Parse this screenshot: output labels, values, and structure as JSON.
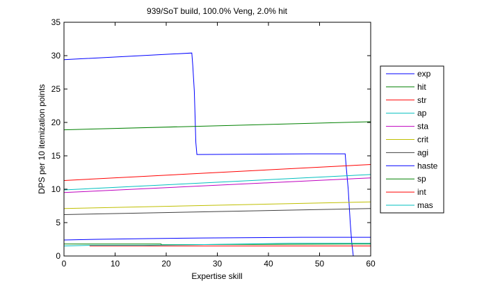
{
  "chart_data": {
    "type": "line",
    "title": "939/SoT build, 100.0% Veng, 2.0% hit",
    "xlabel": "Expertise skill",
    "ylabel": "DPS per 10 itemization points",
    "xlim": [
      0,
      60
    ],
    "ylim": [
      0,
      35
    ],
    "xticks": [
      "0",
      "10",
      "20",
      "30",
      "40",
      "50",
      "60"
    ],
    "yticks": [
      "0",
      "5",
      "10",
      "15",
      "20",
      "25",
      "30",
      "35"
    ],
    "grid": false,
    "legend_position": "outside-right",
    "series": [
      {
        "name": "exp",
        "color": "#0000ff",
        "x": [
          0,
          25,
          25.2,
          25.5,
          25.8,
          26,
          48,
          55,
          55.2,
          55.6,
          56,
          56.3,
          56.6
        ],
        "y": [
          29.4,
          30.4,
          28.5,
          24.7,
          17.0,
          15.2,
          15.3,
          15.3,
          13.5,
          10.0,
          5.0,
          2.0,
          0
        ]
      },
      {
        "name": "hit",
        "color": "#008000",
        "x": [
          0,
          60
        ],
        "y": [
          18.9,
          20.1
        ]
      },
      {
        "name": "str",
        "color": "#ff0000",
        "x": [
          0,
          60
        ],
        "y": [
          11.3,
          13.7
        ]
      },
      {
        "name": "ap",
        "color": "#00bfbf",
        "x": [
          0,
          60
        ],
        "y": [
          9.9,
          12.2
        ]
      },
      {
        "name": "sta",
        "color": "#bf00bf",
        "x": [
          0,
          60
        ],
        "y": [
          9.5,
          11.7
        ]
      },
      {
        "name": "crit",
        "color": "#bfbf00",
        "x": [
          0,
          60
        ],
        "y": [
          7.1,
          8.1
        ]
      },
      {
        "name": "agi",
        "color": "#404040",
        "x": [
          0,
          60
        ],
        "y": [
          6.2,
          7.1
        ]
      },
      {
        "name": "haste",
        "color": "#0000ff",
        "x": [
          0,
          6.7,
          16.5,
          27,
          46.5,
          60
        ],
        "y": [
          2.4,
          2.5,
          2.6,
          2.7,
          2.8,
          2.8
        ]
      },
      {
        "name": "sp",
        "color": "#008000",
        "x": [
          0,
          19,
          19,
          60
        ],
        "y": [
          1.8,
          1.8,
          1.7,
          1.8
        ]
      },
      {
        "name": "int",
        "color": "#ff0000",
        "x": [
          5,
          60
        ],
        "y": [
          1.5,
          1.5
        ]
      },
      {
        "name": "mas",
        "color": "#00bfbf",
        "x": [
          0,
          5,
          15.5,
          25,
          44,
          60
        ],
        "y": [
          1.5,
          1.6,
          1.6,
          1.7,
          1.9,
          1.9
        ]
      }
    ]
  }
}
